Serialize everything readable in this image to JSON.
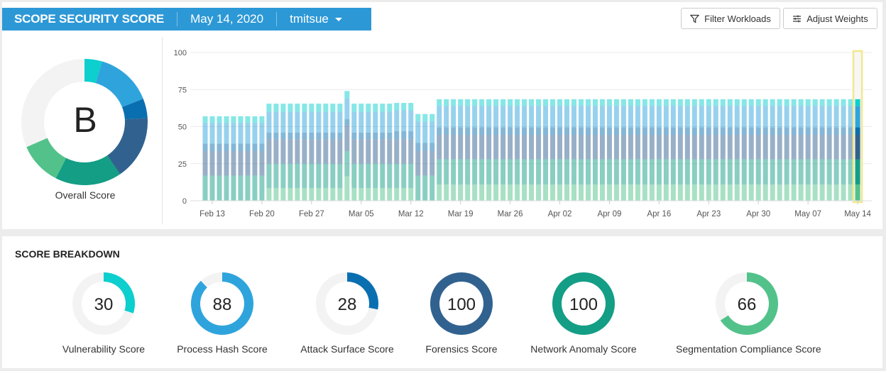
{
  "header": {
    "title": "SCOPE SECURITY SCORE",
    "date": "May 14, 2020",
    "scope": "tmitsue"
  },
  "toolbar": {
    "filter_label": "Filter Workloads",
    "filter_icon": "filter-icon",
    "weights_label": "Adjust Weights",
    "weights_icon": "sliders-icon"
  },
  "overall": {
    "grade": "B",
    "label": "Overall Score"
  },
  "colors": {
    "vulnerability": "#0ccfce",
    "process_hash": "#2fa4dc",
    "attack_surface": "#0a6fb0",
    "forensics": "#31628f",
    "network_anomaly": "#139e85",
    "segmentation": "#52c28a",
    "highlight": "#f2e88c",
    "track": "#f3f3f3"
  },
  "chart_data": {
    "type": "bar",
    "stacked": true,
    "ylim": [
      0,
      100
    ],
    "yticks": [
      "0",
      "25",
      "50",
      "75",
      "100"
    ],
    "xtick_labels": [
      "Feb 13",
      "Feb 20",
      "Feb 27",
      "Mar 05",
      "Mar 12",
      "Mar 19",
      "Mar 26",
      "Apr 02",
      "Apr 09",
      "Apr 16",
      "Apr 23",
      "Apr 30",
      "May 07",
      "May 14"
    ],
    "xtick_dates": [
      "2020-02-13",
      "2020-02-20",
      "2020-02-27",
      "2020-03-05",
      "2020-03-12",
      "2020-03-19",
      "2020-03-26",
      "2020-04-02",
      "2020-04-09",
      "2020-04-16",
      "2020-04-23",
      "2020-04-30",
      "2020-05-07",
      "2020-05-14"
    ],
    "grid": true,
    "highlighted_date": "2020-05-14",
    "stack_order": [
      "segmentation",
      "network_anomaly",
      "forensics",
      "attack_surface",
      "process_hash",
      "vulnerability"
    ],
    "runs": [
      {
        "from": "2020-02-12",
        "to": "2020-02-20",
        "values": [
          0,
          17,
          16.5,
          5,
          14,
          4.5
        ]
      },
      {
        "from": "2020-02-21",
        "to": "2020-03-02",
        "values": [
          8.5,
          16.5,
          16.5,
          4.5,
          14,
          5.5
        ]
      },
      {
        "from": "2020-03-03",
        "to": "2020-03-03",
        "values": [
          16.5,
          17,
          17,
          4.5,
          14,
          5
        ]
      },
      {
        "from": "2020-03-04",
        "to": "2020-03-09",
        "values": [
          8.5,
          16.5,
          16.5,
          4.5,
          14,
          5.5
        ]
      },
      {
        "from": "2020-03-10",
        "to": "2020-03-12",
        "values": [
          8.5,
          16.5,
          16.5,
          5.5,
          14,
          5
        ]
      },
      {
        "from": "2020-03-13",
        "to": "2020-03-15",
        "values": [
          0,
          17,
          16.5,
          5.5,
          14.5,
          5
        ]
      },
      {
        "from": "2020-03-16",
        "to": "2020-05-14",
        "values": [
          11,
          17,
          16.5,
          5,
          14.5,
          4.5
        ]
      }
    ]
  },
  "breakdown": {
    "title": "SCORE BREAKDOWN",
    "scores": [
      {
        "key": "vulnerability",
        "label": "Vulnerability Score",
        "value": 30
      },
      {
        "key": "process_hash",
        "label": "Process Hash Score",
        "value": 88
      },
      {
        "key": "attack_surface",
        "label": "Attack Surface Score",
        "value": 28
      },
      {
        "key": "forensics",
        "label": "Forensics Score",
        "value": 100
      },
      {
        "key": "network_anomaly",
        "label": "Network Anomaly Score",
        "value": 100
      },
      {
        "key": "segmentation",
        "label": "Segmentation Compliance Score",
        "value": 66
      }
    ]
  }
}
